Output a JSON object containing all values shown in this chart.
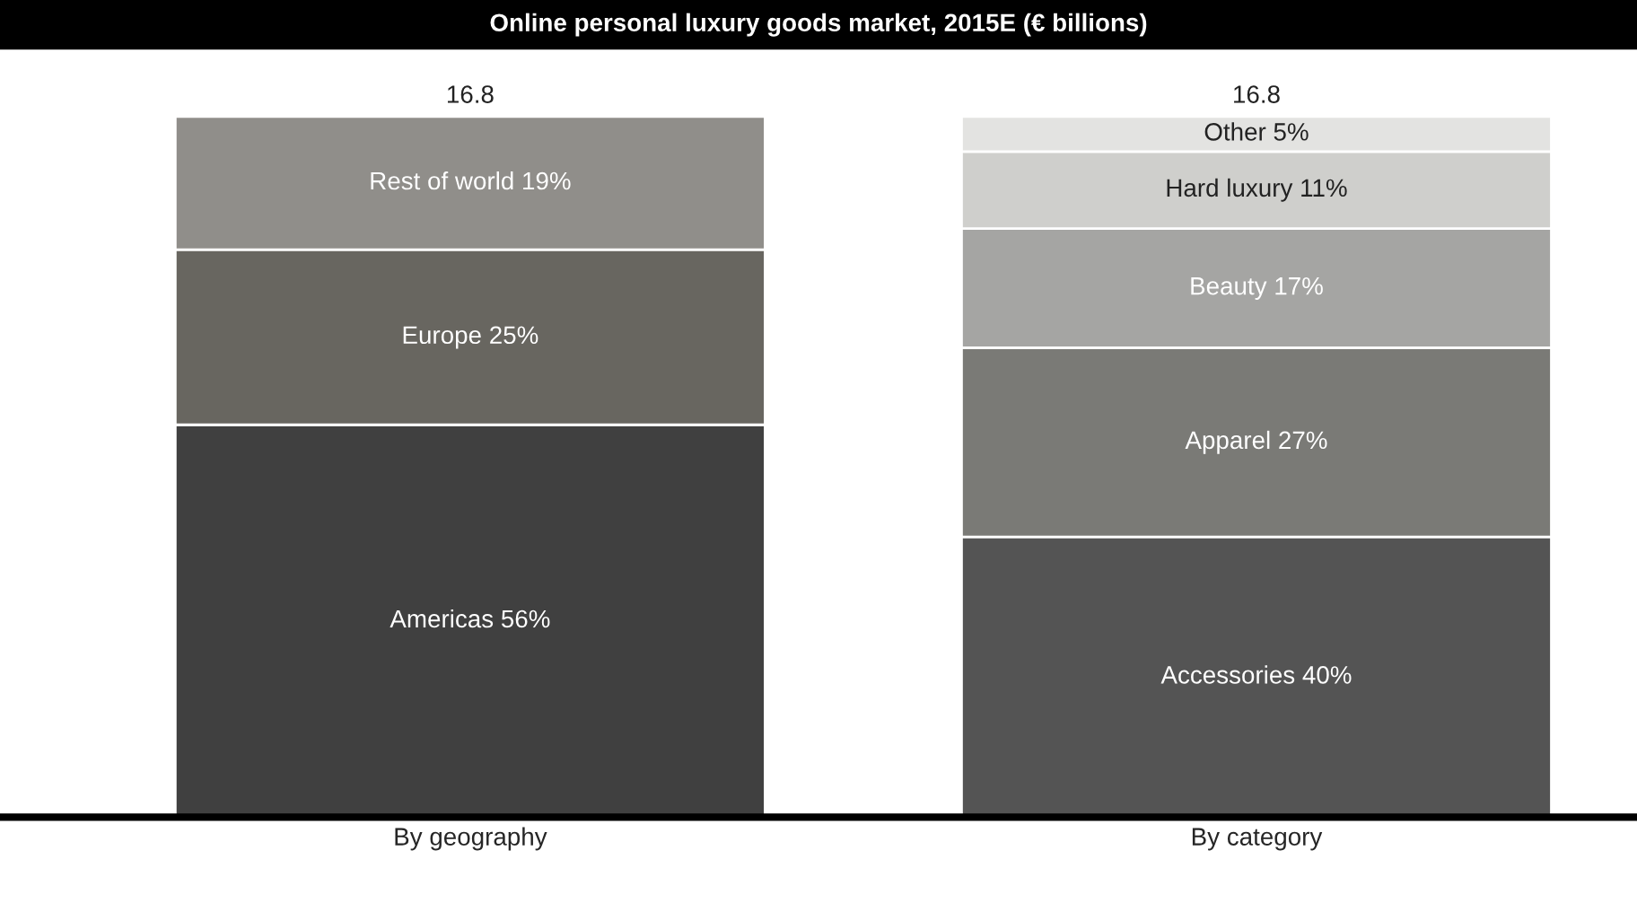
{
  "chart_data": {
    "type": "bar",
    "title": "Online personal luxury goods market, 2015E (€ billions)",
    "categories": [
      "By geography",
      "By category"
    ],
    "stacked": true,
    "annotations": [
      {
        "text": "16.8",
        "x": "By geography",
        "y": 100
      },
      {
        "text": "16.8",
        "x": "By category",
        "y": 100
      }
    ],
    "series": [
      {
        "colors": [
          "#404040",
          "#545454"
        ],
        "values": [
          56,
          40
        ],
        "value_labels": [
          "Americas 56%",
          "Accessories 40%"
        ]
      },
      {
        "colors": [
          "#686660",
          "#7a7a76"
        ],
        "values": [
          25,
          27
        ],
        "value_labels": [
          "Europe 25%",
          "Apparel 27%"
        ]
      },
      {
        "colors": [
          "#908e8a",
          "#a5a5a3"
        ],
        "values": [
          19,
          17
        ],
        "value_labels": [
          "Rest of world 19%",
          "Beauty 17%"
        ]
      },
      {
        "colors": [
          null,
          "#cfcfcc"
        ],
        "values": [
          null,
          11
        ],
        "value_labels": [
          null,
          "Hard luxury 11%"
        ]
      },
      {
        "colors": [
          null,
          "#e3e3e1"
        ],
        "values": [
          null,
          5
        ],
        "value_labels": [
          null,
          "Other 5%"
        ]
      }
    ]
  }
}
